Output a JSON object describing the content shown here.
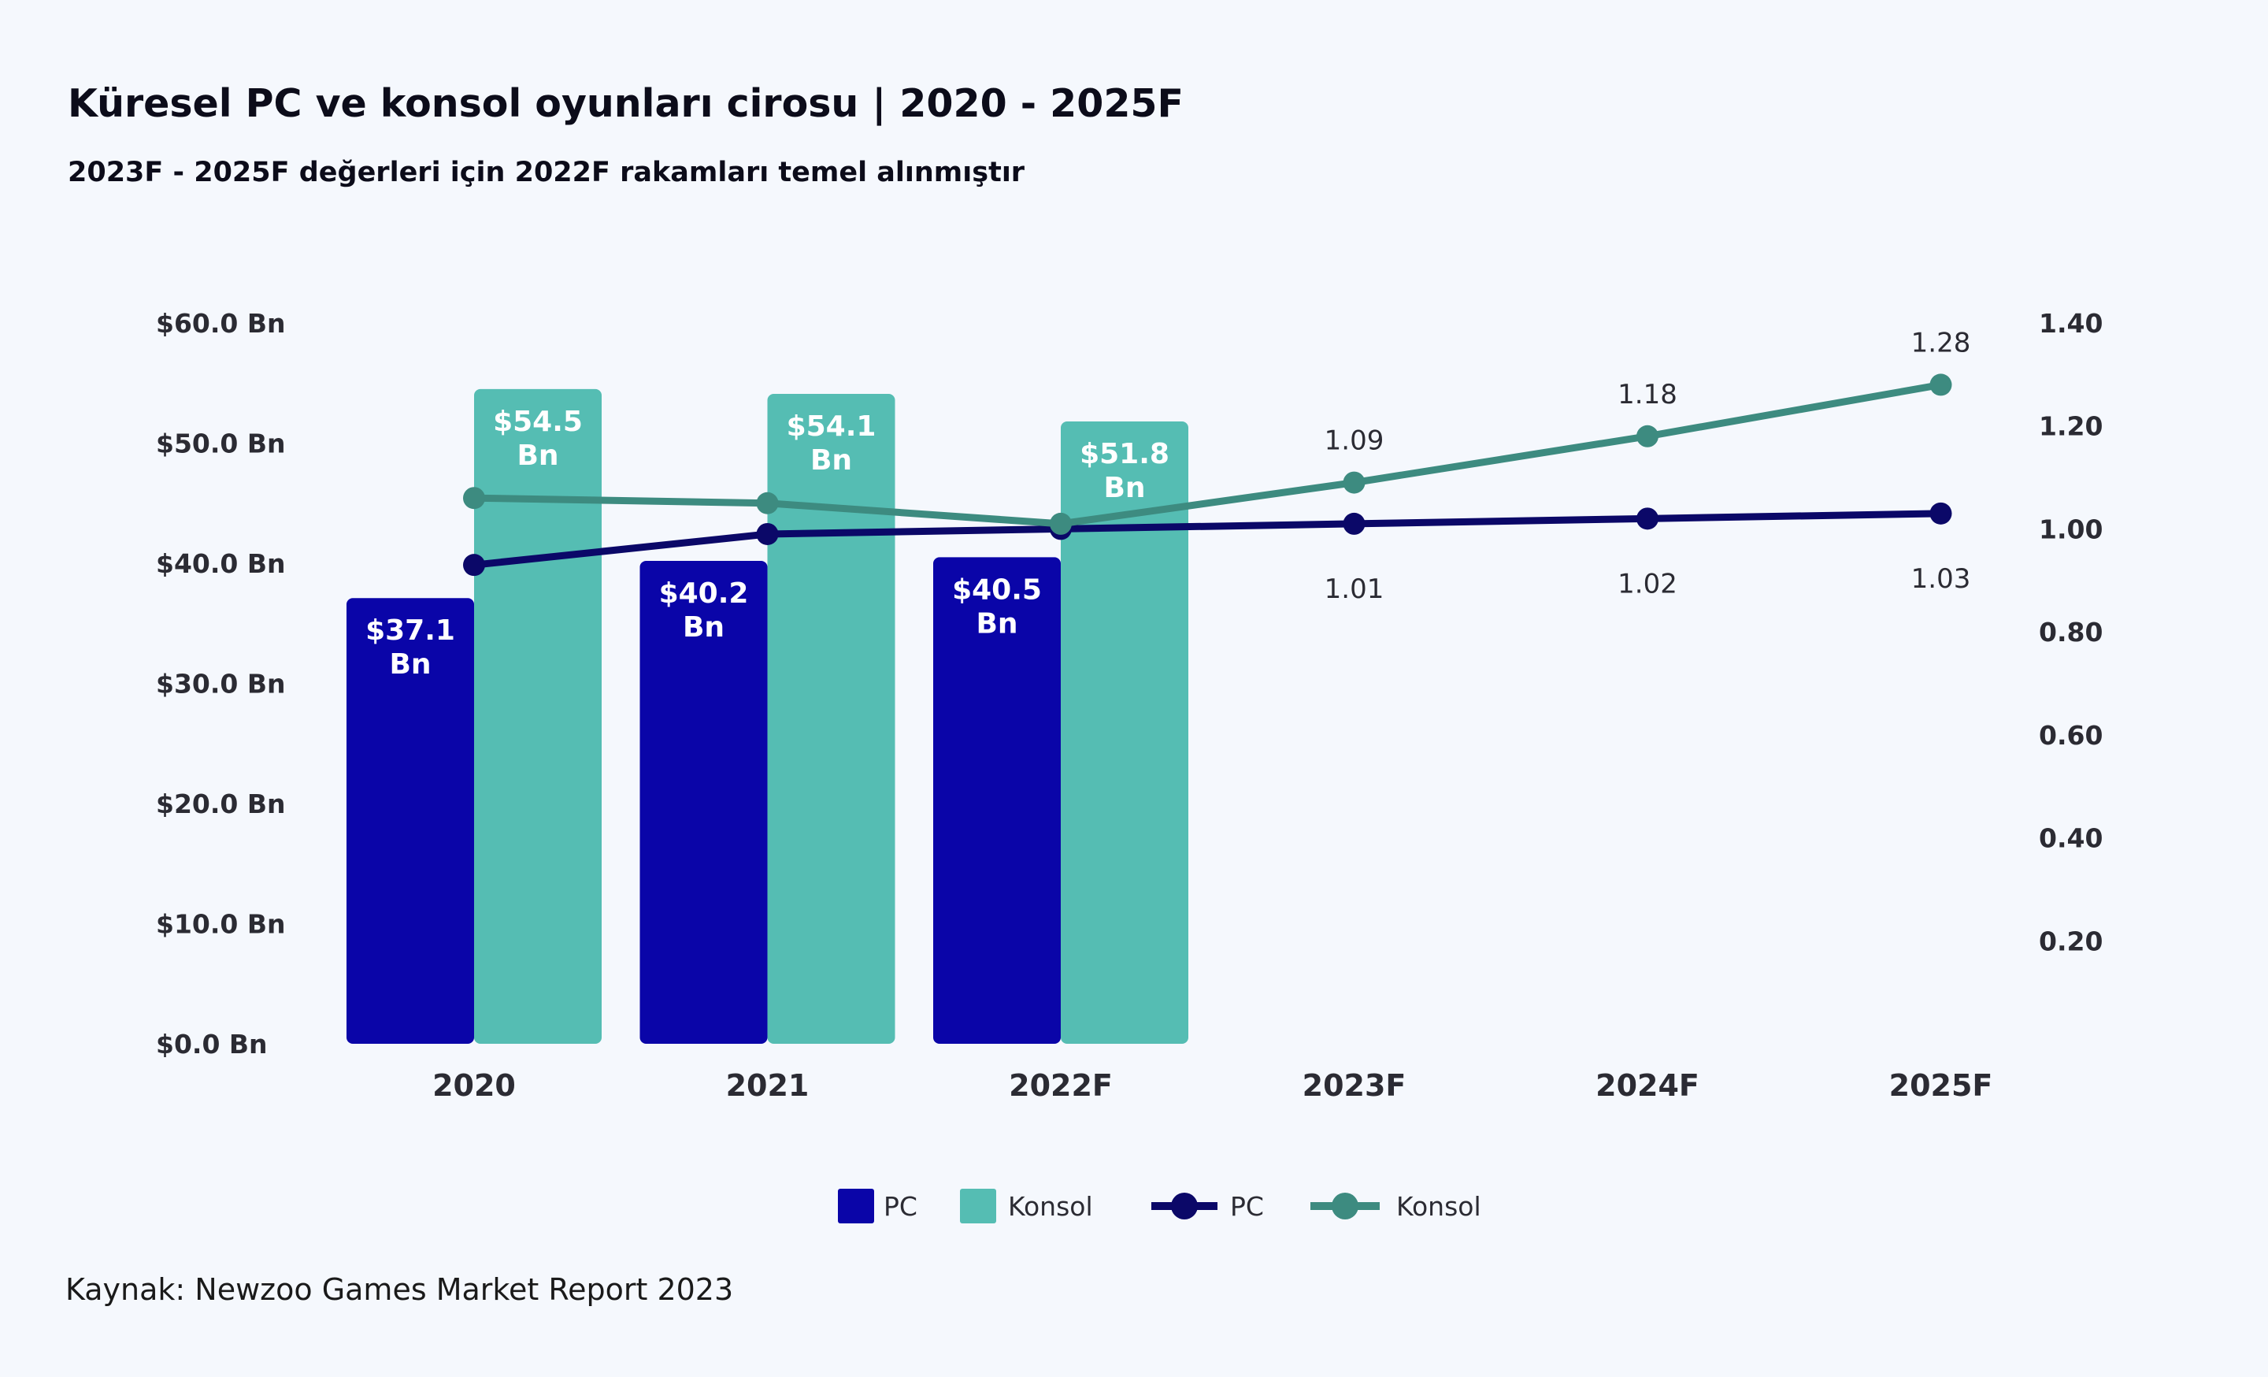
{
  "chart_data": {
    "type": "bar",
    "title": "Küresel PC ve konsol oyunları cirosu | 2020 - 2025F",
    "subtitle": "2023F - 2025F değerleri için 2022F rakamları temel alınmıştır",
    "source": "Kaynak: Newzoo Games Market Report 2023",
    "categories": [
      "2020",
      "2021",
      "2022F",
      "2023F",
      "2024F",
      "2025F"
    ],
    "left_axis": {
      "ylim": [
        0,
        60
      ],
      "ticks": [
        0,
        10,
        20,
        30,
        40,
        50,
        60
      ],
      "tick_labels": [
        "$0.0 Bn",
        "$10.0 Bn",
        "$20.0 Bn",
        "$30.0 Bn",
        "$40.0 Bn",
        "$50.0 Bn",
        "$60.0 Bn"
      ]
    },
    "right_axis": {
      "ylim": [
        0,
        1.4
      ],
      "ticks": [
        0.2,
        0.4,
        0.6,
        0.8,
        1.0,
        1.2,
        1.4
      ],
      "tick_labels": [
        "0.20",
        "0.40",
        "0.60",
        "0.80",
        "1.00",
        "1.20",
        "1.40"
      ]
    },
    "bar_series": [
      {
        "name": "PC",
        "color": "#0a05a8",
        "values": [
          37.1,
          40.2,
          40.5,
          null,
          null,
          null
        ],
        "labels": [
          "$37.1",
          "$40.2",
          "$40.5"
        ],
        "unit_label": "Bn"
      },
      {
        "name": "Konsol",
        "color": "#55bdb3",
        "values": [
          54.5,
          54.1,
          51.8,
          null,
          null,
          null
        ],
        "labels": [
          "$54.5",
          "$54.1",
          "$51.8"
        ],
        "unit_label": "Bn"
      }
    ],
    "line_series": [
      {
        "name": "PC",
        "color": "#0b0868",
        "values": [
          0.93,
          0.99,
          1.0,
          1.01,
          1.02,
          1.03
        ],
        "labels": [
          "",
          "",
          "",
          "1.01",
          "1.02",
          "1.03"
        ]
      },
      {
        "name": "Konsol",
        "color": "#3d8b80",
        "values": [
          1.06,
          1.05,
          1.01,
          1.09,
          1.18,
          1.28
        ],
        "labels": [
          "",
          "",
          "",
          "1.09",
          "1.18",
          "1.28"
        ]
      }
    ],
    "legend_position": "bottom",
    "grid": false
  }
}
